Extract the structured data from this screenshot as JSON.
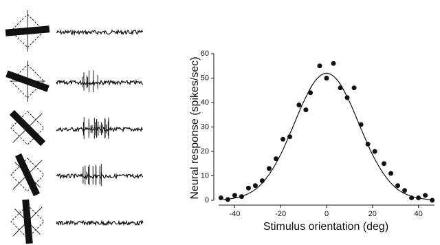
{
  "chart_data": {
    "type": "scatter",
    "x_label": "Stimulus orientation (deg)",
    "y_label": "Neural response (spikes/sec)",
    "xlim": [
      -47,
      47
    ],
    "ylim": [
      0,
      60
    ],
    "xticks": [
      -40,
      -20,
      0,
      20,
      40
    ],
    "yticks": [
      0,
      10,
      20,
      30,
      40,
      50,
      60
    ],
    "color": "#111111",
    "points": {
      "x": [
        -46,
        -43,
        -40,
        -37,
        -34,
        -31,
        -28,
        -25,
        -22,
        -19,
        -16,
        -12,
        -9,
        -7,
        -3,
        0,
        3,
        6,
        9,
        12,
        15,
        18,
        21,
        25,
        28,
        31,
        34,
        37,
        40,
        43,
        46
      ],
      "values": [
        1,
        0.3,
        2,
        1.5,
        5,
        6,
        8,
        13,
        17,
        25,
        26,
        39,
        37,
        44,
        55,
        50,
        56,
        46,
        42,
        46,
        31,
        23,
        20,
        15,
        11,
        6,
        4,
        1,
        1,
        2,
        0
      ]
    },
    "fit": {
      "x": [
        -45,
        -40,
        -35,
        -30,
        -25,
        -20,
        -15,
        -10,
        -5,
        0,
        5,
        10,
        15,
        20,
        25,
        30,
        35,
        40,
        45
      ],
      "values": [
        0.3,
        0.9,
        2.3,
        5.2,
        10.6,
        18.7,
        29.3,
        40.3,
        48.8,
        52,
        48.8,
        40.3,
        29.3,
        18.7,
        10.6,
        5.2,
        2.3,
        0.9,
        0.3
      ]
    }
  }
}
